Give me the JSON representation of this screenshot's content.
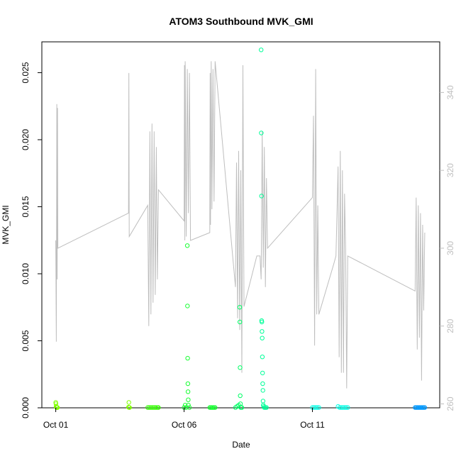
{
  "chart_data": {
    "type": "scatter",
    "title": "ATOM3 Southbound MVK_GMI",
    "xlabel": "Date",
    "ylabel": "MVK_GMI",
    "x_is_date": true,
    "xlim": [
      "2016-09-30T11:00",
      "2016-10-15T23:00"
    ],
    "ylim": [
      0,
      0.0273
    ],
    "x_ticks": [
      {
        "label": "Oct 01",
        "value": "2016-10-01T00:00"
      },
      {
        "label": "Oct 06",
        "value": "2016-10-06T00:00"
      },
      {
        "label": "Oct 11",
        "value": "2016-10-11T00:00"
      }
    ],
    "y_ticks": [
      0.0,
      0.005,
      0.01,
      0.015,
      0.02,
      0.025
    ],
    "y_tick_labels": [
      "0.000",
      "0.005",
      "0.010",
      "0.015",
      "0.020",
      "0.025"
    ],
    "y2_ticks": [
      260,
      280,
      300,
      320,
      340
    ],
    "y2lim": [
      259,
      353
    ],
    "grid": false,
    "series": [
      {
        "color": "#bebebe",
        "kind": "line",
        "axis": "right",
        "points": [
          [
            "2016-10-01T00:00",
            302
          ],
          [
            "2016-10-01T00:30",
            276
          ],
          [
            "2016-10-01T01:00",
            337
          ],
          [
            "2016-10-01T01:20",
            292
          ],
          [
            "2016-10-01T01:40",
            336
          ],
          [
            "2016-10-01T02:00",
            300
          ],
          [
            "2016-10-03T20:00",
            309
          ],
          [
            "2016-10-03T20:20",
            345
          ],
          [
            "2016-10-03T20:40",
            303
          ],
          [
            "2016-10-04T14:00",
            311
          ],
          [
            "2016-10-04T15:00",
            280
          ],
          [
            "2016-10-04T16:00",
            330
          ],
          [
            "2016-10-04T17:00",
            283
          ],
          [
            "2016-10-04T18:00",
            332
          ],
          [
            "2016-10-04T19:00",
            286
          ],
          [
            "2016-10-04T20:00",
            330
          ],
          [
            "2016-10-04T21:00",
            288
          ],
          [
            "2016-10-04T22:00",
            326
          ],
          [
            "2016-10-04T23:00",
            292
          ],
          [
            "2016-10-05T00:00",
            315
          ],
          [
            "2016-10-06T00:00",
            307
          ],
          [
            "2016-10-06T00:20",
            347
          ],
          [
            "2016-10-06T00:40",
            302
          ],
          [
            "2016-10-06T01:00",
            348
          ],
          [
            "2016-10-06T02:00",
            303
          ],
          [
            "2016-10-06T03:00",
            346
          ],
          [
            "2016-10-06T04:00",
            309
          ],
          [
            "2016-10-06T05:00",
            345
          ],
          [
            "2016-10-06T06:00",
            302
          ],
          [
            "2016-10-07T00:00",
            304
          ],
          [
            "2016-10-07T00:20",
            345
          ],
          [
            "2016-10-07T00:40",
            306
          ],
          [
            "2016-10-07T01:20",
            348
          ],
          [
            "2016-10-07T02:00",
            310
          ],
          [
            "2016-10-07T03:00",
            346
          ],
          [
            "2016-10-07T04:00",
            312
          ],
          [
            "2016-10-07T05:00",
            348
          ],
          [
            "2016-10-08T00:00",
            290
          ],
          [
            "2016-10-08T01:00",
            322
          ],
          [
            "2016-10-08T02:00",
            282
          ],
          [
            "2016-10-08T03:00",
            325
          ],
          [
            "2016-10-08T04:00",
            279
          ],
          [
            "2016-10-08T05:00",
            320
          ],
          [
            "2016-10-08T06:00",
            268
          ],
          [
            "2016-10-08T07:00",
            347
          ],
          [
            "2016-10-08T08:00",
            285
          ],
          [
            "2016-10-08T20:00",
            298
          ],
          [
            "2016-10-08T23:00",
            298
          ],
          [
            "2016-10-09T00:00",
            292
          ],
          [
            "2016-10-09T01:00",
            330
          ],
          [
            "2016-10-09T02:00",
            295
          ],
          [
            "2016-10-09T03:00",
            326
          ],
          [
            "2016-10-09T04:00",
            290
          ],
          [
            "2016-10-09T05:00",
            318
          ],
          [
            "2016-10-09T06:00",
            300
          ],
          [
            "2016-10-11T00:00",
            313
          ],
          [
            "2016-10-11T01:00",
            334
          ],
          [
            "2016-10-11T02:00",
            275
          ],
          [
            "2016-10-11T03:00",
            346
          ],
          [
            "2016-10-11T04:00",
            283
          ],
          [
            "2016-10-11T05:00",
            311
          ],
          [
            "2016-10-11T06:00",
            283
          ],
          [
            "2016-10-11T20:00",
            296
          ],
          [
            "2016-10-11T22:00",
            298
          ],
          [
            "2016-10-12T00:00",
            321
          ],
          [
            "2016-10-12T01:00",
            272
          ],
          [
            "2016-10-12T02:00",
            325
          ],
          [
            "2016-10-12T03:00",
            268
          ],
          [
            "2016-10-12T04:00",
            320
          ],
          [
            "2016-10-12T05:00",
            268
          ],
          [
            "2016-10-12T06:00",
            314
          ],
          [
            "2016-10-12T07:00",
            300
          ],
          [
            "2016-10-12T08:00",
            264
          ],
          [
            "2016-10-12T09:00",
            298
          ],
          [
            "2016-10-15T00:00",
            289
          ],
          [
            "2016-10-15T01:00",
            313
          ],
          [
            "2016-10-15T02:00",
            274
          ],
          [
            "2016-10-15T03:00",
            311
          ],
          [
            "2016-10-15T04:00",
            277
          ],
          [
            "2016-10-15T05:00",
            309
          ],
          [
            "2016-10-15T06:00",
            266
          ],
          [
            "2016-10-15T07:00",
            306
          ],
          [
            "2016-10-15T08:00",
            284
          ],
          [
            "2016-10-15T09:00",
            304
          ]
        ]
      },
      {
        "color": "#80ff00",
        "kind": "points",
        "points": [
          [
            "2016-10-01T00:00",
            0.0004
          ],
          [
            "2016-10-01T00:10",
            0.0003
          ],
          [
            "2016-10-01T00:20",
            0.0001
          ],
          [
            "2016-10-01T00:30",
            5e-05
          ],
          [
            "2016-10-01T00:40",
            5e-05
          ],
          [
            "2016-10-01T00:50",
            2e-05
          ],
          [
            "2016-10-01T01:00",
            2e-05
          ],
          [
            "2016-10-01T01:20",
            2e-05
          ],
          [
            "2016-10-01T01:40",
            2e-05
          ],
          [
            "2016-10-03T20:00",
            5e-05
          ],
          [
            "2016-10-03T20:20",
            0.0004
          ],
          [
            "2016-10-03T20:40",
            2e-05
          ],
          [
            "2016-10-03T21:00",
            2e-05
          ]
        ]
      },
      {
        "color": "#33ff00",
        "kind": "points",
        "points": [
          [
            "2016-10-04T14:00",
            2e-05
          ],
          [
            "2016-10-04T15:30",
            2e-05
          ],
          [
            "2016-10-04T17:00",
            2e-05
          ],
          [
            "2016-10-04T18:30",
            2e-05
          ],
          [
            "2016-10-04T20:00",
            2e-05
          ],
          [
            "2016-10-04T21:30",
            2e-05
          ],
          [
            "2016-10-04T23:00",
            2e-05
          ],
          [
            "2016-10-05T00:00",
            2e-05
          ]
        ]
      },
      {
        "color": "#19ff33",
        "kind": "points",
        "points": [
          [
            "2016-10-06T00:00",
            2e-05
          ],
          [
            "2016-10-06T01:00",
            0.0002
          ],
          [
            "2016-10-06T02:00",
            2e-05
          ],
          [
            "2016-10-06T03:00",
            0.0121
          ],
          [
            "2016-10-06T03:10",
            0.0076
          ],
          [
            "2016-10-06T03:20",
            0.0037
          ],
          [
            "2016-10-06T03:30",
            0.0018
          ],
          [
            "2016-10-06T03:40",
            0.0012
          ],
          [
            "2016-10-06T03:50",
            0.0006
          ],
          [
            "2016-10-06T04:00",
            0.0002
          ],
          [
            "2016-10-06T05:00",
            2e-05
          ],
          [
            "2016-10-07T00:00",
            2e-05
          ],
          [
            "2016-10-07T01:00",
            2e-05
          ],
          [
            "2016-10-07T02:00",
            2e-05
          ],
          [
            "2016-10-07T03:00",
            2e-05
          ],
          [
            "2016-10-07T04:00",
            2e-05
          ],
          [
            "2016-10-07T05:00",
            2e-05
          ]
        ]
      },
      {
        "color": "#00ff66",
        "kind": "points",
        "points": [
          [
            "2016-10-08T00:00",
            2e-05
          ],
          [
            "2016-10-08T01:30",
            0.0001
          ],
          [
            "2016-10-08T03:00",
            0.0002
          ],
          [
            "2016-10-08T04:00",
            0.0075
          ],
          [
            "2016-10-08T04:10",
            0.0064
          ],
          [
            "2016-10-08T04:20",
            0.003
          ],
          [
            "2016-10-08T04:30",
            0.0009
          ],
          [
            "2016-10-08T04:40",
            0.0003
          ],
          [
            "2016-10-08T05:00",
            2e-05
          ],
          [
            "2016-10-08T06:00",
            2e-05
          ]
        ]
      },
      {
        "color": "#00ff99",
        "kind": "points",
        "points": [
          [
            "2016-10-09T00:00",
            0.0267
          ],
          [
            "2016-10-09T00:10",
            0.0205
          ],
          [
            "2016-10-09T00:20",
            0.0158
          ],
          [
            "2016-10-09T00:30",
            0.0065
          ],
          [
            "2016-10-09T00:40",
            0.0064
          ],
          [
            "2016-10-09T00:50",
            0.0057
          ],
          [
            "2016-10-09T01:00",
            0.0052
          ],
          [
            "2016-10-09T01:10",
            0.0038
          ],
          [
            "2016-10-09T01:20",
            0.0026
          ],
          [
            "2016-10-09T01:30",
            0.0018
          ],
          [
            "2016-10-09T01:40",
            0.0013
          ],
          [
            "2016-10-09T01:50",
            0.0005
          ],
          [
            "2016-10-09T02:00",
            0.0002
          ],
          [
            "2016-10-09T02:30",
            0.0001
          ],
          [
            "2016-10-09T03:00",
            2e-05
          ],
          [
            "2016-10-09T04:00",
            2e-05
          ],
          [
            "2016-10-09T05:00",
            2e-05
          ]
        ]
      },
      {
        "color": "#00ffe6",
        "kind": "points",
        "points": [
          [
            "2016-10-11T00:00",
            2e-05
          ],
          [
            "2016-10-11T01:30",
            2e-05
          ],
          [
            "2016-10-11T03:00",
            2e-05
          ],
          [
            "2016-10-11T04:30",
            2e-05
          ],
          [
            "2016-10-11T06:00",
            2e-05
          ],
          [
            "2016-10-12T00:00",
            0.0001
          ],
          [
            "2016-10-12T01:30",
            2e-05
          ],
          [
            "2016-10-12T03:00",
            2e-05
          ],
          [
            "2016-10-12T04:30",
            2e-05
          ],
          [
            "2016-10-12T06:00",
            2e-05
          ],
          [
            "2016-10-12T07:30",
            2e-05
          ],
          [
            "2016-10-12T09:00",
            2e-05
          ]
        ]
      },
      {
        "color": "#0099ff",
        "kind": "points",
        "points": [
          [
            "2016-10-15T00:00",
            2e-05
          ],
          [
            "2016-10-15T01:00",
            2e-05
          ],
          [
            "2016-10-15T02:00",
            2e-05
          ],
          [
            "2016-10-15T03:00",
            2e-05
          ],
          [
            "2016-10-15T04:00",
            2e-05
          ],
          [
            "2016-10-15T05:00",
            2e-05
          ],
          [
            "2016-10-15T06:00",
            2e-05
          ],
          [
            "2016-10-15T07:00",
            2e-05
          ],
          [
            "2016-10-15T08:00",
            2e-05
          ],
          [
            "2016-10-15T09:00",
            2e-05
          ]
        ]
      }
    ]
  }
}
